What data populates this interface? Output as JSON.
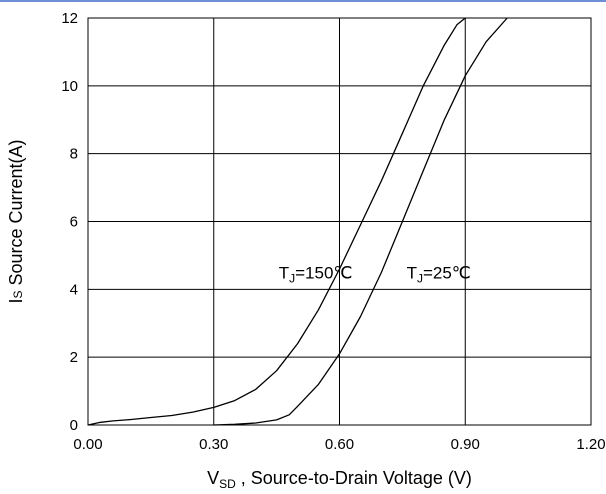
{
  "chart_data": {
    "type": "line",
    "title": "",
    "xlabel": {
      "main": "V",
      "sub": "SD",
      "rest": " , Source-to-Drain Voltage (V)"
    },
    "ylabel": {
      "prefix": "I",
      "sub": "S",
      "rest": " Source Current(A)"
    },
    "xlim": [
      0,
      1.2
    ],
    "ylim": [
      0,
      12
    ],
    "xticks": [
      0,
      0.3,
      0.6,
      0.9,
      1.2
    ],
    "xtick_labels": [
      "0.00",
      "0.30",
      "0.60",
      "0.90",
      "1.20"
    ],
    "yticks": [
      0,
      2,
      4,
      6,
      8,
      10,
      12
    ],
    "ytick_labels": [
      "0",
      "2",
      "4",
      "6",
      "8",
      "10",
      "12"
    ],
    "grid": true,
    "accent_color": "#6e8fd6",
    "series": [
      {
        "color": "#000000",
        "x": [
          0.0,
          0.03,
          0.06,
          0.1,
          0.15,
          0.2,
          0.25,
          0.3,
          0.35,
          0.4,
          0.45,
          0.5,
          0.55,
          0.6,
          0.65,
          0.7,
          0.75,
          0.8,
          0.85,
          0.88,
          0.9
        ],
        "y": [
          0.0,
          0.08,
          0.12,
          0.16,
          0.22,
          0.28,
          0.38,
          0.52,
          0.72,
          1.05,
          1.6,
          2.4,
          3.4,
          4.6,
          5.9,
          7.2,
          8.6,
          10.0,
          11.2,
          11.8,
          12.0
        ]
      },
      {
        "color": "#000000",
        "x": [
          0.3,
          0.35,
          0.4,
          0.45,
          0.48,
          0.5,
          0.55,
          0.6,
          0.65,
          0.7,
          0.75,
          0.8,
          0.85,
          0.9,
          0.95,
          1.0
        ],
        "y": [
          0.0,
          0.02,
          0.06,
          0.15,
          0.3,
          0.55,
          1.2,
          2.1,
          3.2,
          4.5,
          6.0,
          7.5,
          9.0,
          10.3,
          11.3,
          12.0
        ]
      }
    ],
    "annotations": [
      {
        "main": "T",
        "sub": "J",
        "rest": "=150℃",
        "x": 0.455,
        "y": 4.5
      },
      {
        "main": "T",
        "sub": "J",
        "rest": "=25℃",
        "x": 0.76,
        "y": 4.5
      }
    ]
  }
}
